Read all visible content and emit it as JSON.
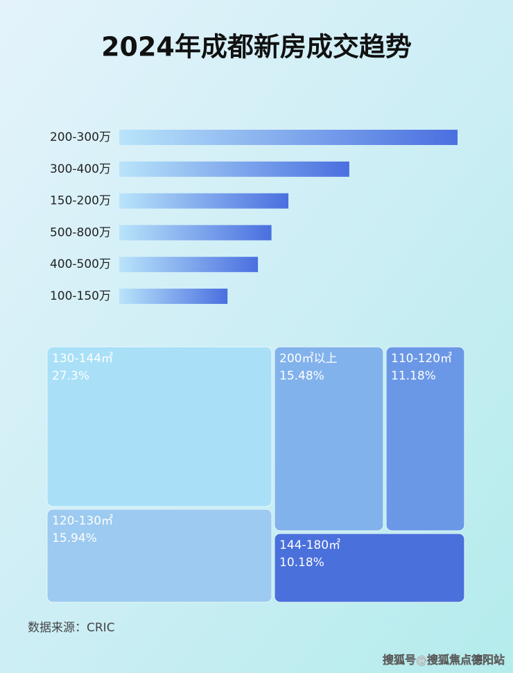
{
  "chart_data": [
    {
      "type": "bar",
      "orientation": "horizontal",
      "title": "2024年成都新房成交趋势",
      "categories": [
        "200-300万",
        "300-400万",
        "150-200万",
        "500-800万",
        "400-500万",
        "100-150万"
      ],
      "values": [
        100,
        68,
        50,
        45,
        41,
        32
      ],
      "xlim": [
        0,
        100
      ],
      "color": "#4a6fe0"
    },
    {
      "type": "treemap",
      "categories": [
        "130-144㎡",
        "120-130㎡",
        "200㎡以上",
        "110-120㎡",
        "144-180㎡"
      ],
      "values": [
        27.3,
        15.94,
        15.48,
        11.18,
        10.18
      ],
      "value_labels": [
        "27.3%",
        "15.94%",
        "15.48%",
        "11.18%",
        "10.18%"
      ],
      "colors": [
        "#a9e0f8",
        "#9ccaf0",
        "#82b2ec",
        "#6b98e6",
        "#4a70dc"
      ]
    }
  ],
  "source": "数据来源：CRIC",
  "watermark": "搜狐号@搜狐焦点德阳站"
}
